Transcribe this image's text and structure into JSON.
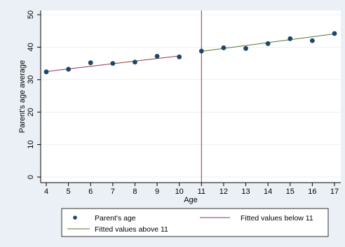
{
  "chart_data": {
    "type": "scatter",
    "xlabel": "Age",
    "ylabel": "Parent's age average",
    "xlim": [
      4,
      17
    ],
    "ylim": [
      0,
      50
    ],
    "x_ticks": [
      "4",
      "5",
      "6",
      "7",
      "8",
      "9",
      "10",
      "11",
      "12",
      "13",
      "14",
      "15",
      "16",
      "17"
    ],
    "y_ticks": [
      "0",
      "10",
      "20",
      "30",
      "40",
      "50"
    ],
    "cutoff": 11,
    "grid": true,
    "legend_position": "bottom",
    "series": [
      {
        "name": "Parent's age",
        "kind": "markers",
        "color": "#1a476f",
        "points": [
          [
            4,
            32.4
          ],
          [
            5,
            33.2
          ],
          [
            6,
            35.2
          ],
          [
            7,
            35.0
          ],
          [
            8,
            35.4
          ],
          [
            9,
            37.2
          ],
          [
            10,
            37.0
          ],
          [
            11,
            38.8
          ],
          [
            12,
            39.8
          ],
          [
            13,
            39.6
          ],
          [
            14,
            41.1
          ],
          [
            15,
            42.6
          ],
          [
            16,
            42.0
          ],
          [
            17,
            44.2
          ]
        ]
      },
      {
        "name": "Fitted values below 11",
        "kind": "line",
        "color": "#90353b",
        "points": [
          [
            4,
            32.5
          ],
          [
            10,
            37.3
          ]
        ]
      },
      {
        "name": "Fitted values above 11",
        "kind": "line",
        "color": "#55752f",
        "points": [
          [
            11,
            38.7
          ],
          [
            17,
            44.1
          ]
        ]
      }
    ]
  }
}
